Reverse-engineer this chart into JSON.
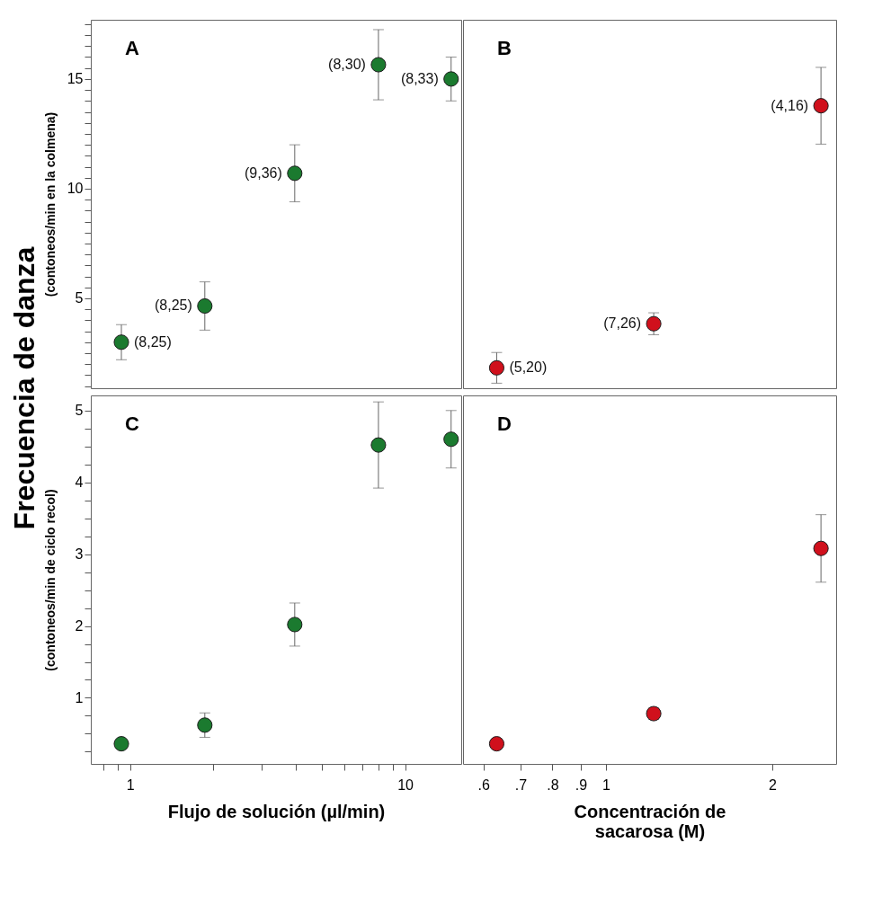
{
  "chart_data": [
    {
      "type": "scatter",
      "title": "A",
      "ylabel": "(contoneos/min en la colmena)",
      "annotations": [
        "Frecuencia de danza",
        {
          "text": "(8,25)",
          "x": 0.93,
          "y": 3.0
        },
        {
          "text": "(8,25)",
          "x": 1.87,
          "y": 4.65
        },
        {
          "text": "(9,36)",
          "x": 3.97,
          "y": 10.7
        },
        {
          "text": "(8,30)",
          "x": 8.0,
          "y": 15.65
        },
        {
          "text": "(8,33)",
          "x": 14.7,
          "y": 15.0
        }
      ],
      "x": [
        0.93,
        1.87,
        3.97,
        8.0,
        14.7
      ],
      "series": [
        {
          "color": "#1b7a2f",
          "values": [
            3.0,
            4.65,
            10.7,
            15.65,
            15.0
          ],
          "errors": [
            0.8,
            1.1,
            1.3,
            1.6,
            1.0
          ]
        }
      ],
      "xlim": [
        0.72,
        16
      ],
      "ylim": [
        0.9,
        17.7
      ],
      "yticks": [
        {
          "value": 1,
          "label": null
        },
        {
          "value": 1.5,
          "label": null
        },
        {
          "value": 2,
          "label": null
        },
        {
          "value": 2.5,
          "label": null
        },
        {
          "value": 3,
          "label": null
        },
        {
          "value": 3.5,
          "label": null
        },
        {
          "value": 4,
          "label": null
        },
        {
          "value": 4.5,
          "label": null
        },
        5,
        {
          "value": 5.5,
          "label": null
        },
        {
          "value": 6,
          "label": null
        },
        {
          "value": 6.5,
          "label": null
        },
        {
          "value": 7,
          "label": null
        },
        {
          "value": 7.5,
          "label": null
        },
        {
          "value": 8,
          "label": null
        },
        {
          "value": 8.5,
          "label": null
        },
        {
          "value": 9,
          "label": null
        },
        {
          "value": 9.5,
          "label": null
        },
        10,
        {
          "value": 10.5,
          "label": null
        },
        {
          "value": 11,
          "label": null
        },
        {
          "value": 11.5,
          "label": null
        },
        {
          "value": 12,
          "label": null
        },
        {
          "value": 12.5,
          "label": null
        },
        {
          "value": 13,
          "label": null
        },
        {
          "value": 13.5,
          "label": null
        },
        {
          "value": 14,
          "label": null
        },
        {
          "value": 14.5,
          "label": null
        },
        15,
        {
          "value": 15.5,
          "label": null
        },
        {
          "value": 16,
          "label": null
        },
        {
          "value": 16.5,
          "label": null
        },
        {
          "value": 17,
          "label": null
        },
        {
          "value": 17.5,
          "label": null
        }
      ],
      "log": "x",
      "tick_labels": "y",
      "marker": "circle"
    },
    {
      "type": "scatter",
      "title": "B",
      "annotations": [
        {
          "text": "(5,20)",
          "x": 0.634,
          "y": 1.83
        },
        {
          "text": "(7,26)",
          "x": 1.22,
          "y": 3.84
        },
        {
          "text": "(4,16)",
          "x": 2.45,
          "y": 13.78
        }
      ],
      "x": [
        0.634,
        1.22,
        2.45
      ],
      "series": [
        {
          "color": "#d0101c",
          "values": [
            1.83,
            3.84,
            13.78
          ],
          "errors": [
            0.7,
            0.5,
            1.75
          ]
        }
      ],
      "xlim": [
        0.551,
        2.61
      ],
      "ylim": [
        0.9,
        17.7
      ],
      "log": "x",
      "tick_labels": false,
      "marker": "circle"
    },
    {
      "type": "scatter",
      "title": "C",
      "xlabel": "Flujo de solución (µl/min)",
      "ylabel": "(contoneos/min de ciclo recol)",
      "x": [
        0.93,
        1.87,
        3.97,
        8.0,
        14.7
      ],
      "series": [
        {
          "color": "#1b7a2f",
          "values": [
            0.36,
            0.62,
            2.02,
            4.52,
            4.6
          ],
          "errors": [
            null,
            0.17,
            0.3,
            0.6,
            0.4
          ]
        }
      ],
      "xlim": [
        0.72,
        16
      ],
      "xticks": [
        {
          "value": 0.8,
          "label": null
        },
        {
          "value": 0.9,
          "label": null
        },
        1,
        {
          "value": 2,
          "label": null
        },
        {
          "value": 3,
          "label": null
        },
        {
          "value": 4,
          "label": null
        },
        {
          "value": 5,
          "label": null
        },
        {
          "value": 6,
          "label": null
        },
        {
          "value": 7,
          "label": null
        },
        {
          "value": 8,
          "label": null
        },
        {
          "value": 9,
          "label": null
        },
        10
      ],
      "ylim": [
        0.08,
        5.21
      ],
      "yticks": [
        {
          "value": 0.25,
          "label": null
        },
        {
          "value": 0.5,
          "label": null
        },
        {
          "value": 0.75,
          "label": null
        },
        1,
        {
          "value": 1.25,
          "label": null
        },
        {
          "value": 1.5,
          "label": null
        },
        {
          "value": 1.75,
          "label": null
        },
        2,
        {
          "value": 2.25,
          "label": null
        },
        {
          "value": 2.5,
          "label": null
        },
        {
          "value": 2.75,
          "label": null
        },
        3,
        {
          "value": 3.25,
          "label": null
        },
        {
          "value": 3.5,
          "label": null
        },
        {
          "value": 3.75,
          "label": null
        },
        4,
        {
          "value": 4.25,
          "label": null
        },
        {
          "value": 4.5,
          "label": null
        },
        {
          "value": 4.75,
          "label": null
        },
        5
      ],
      "log": "x",
      "marker": "circle"
    },
    {
      "type": "scatter",
      "title": "D",
      "xlabel": "Concentración de sacarosa (M)",
      "x": [
        0.634,
        1.22,
        2.45
      ],
      "series": [
        {
          "color": "#d0101c",
          "values": [
            0.36,
            0.78,
            3.08
          ],
          "errors": [
            0.07,
            0.08,
            0.47
          ]
        }
      ],
      "xlim": [
        0.551,
        2.61
      ],
      "xticks": [
        {
          "value": 0.6,
          "label": ".6"
        },
        {
          "value": 0.7,
          "label": ".7"
        },
        {
          "value": 0.8,
          "label": ".8"
        },
        {
          "value": 0.9,
          "label": ".9"
        },
        1,
        2
      ],
      "ylim": [
        0.08,
        5.21
      ],
      "log": "x",
      "tick_labels": "x",
      "marker": "circle"
    }
  ]
}
